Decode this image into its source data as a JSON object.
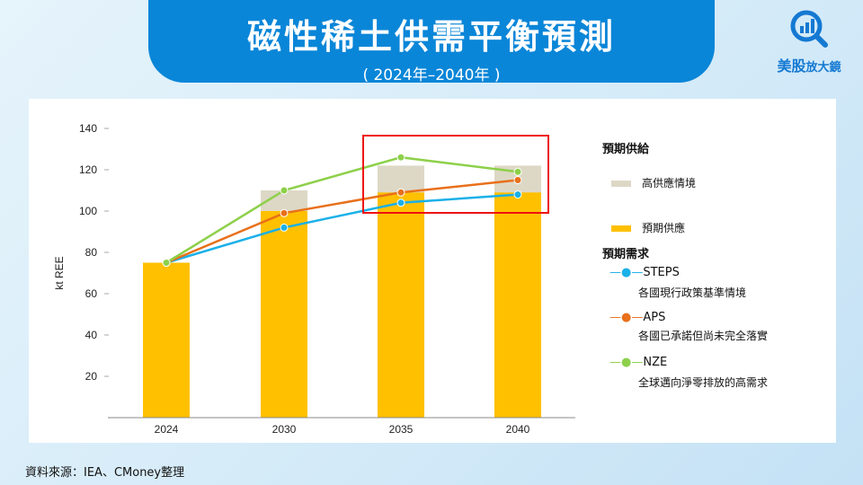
{
  "header": {
    "title": "磁性稀土供需平衡預測",
    "subtitle": "( 2024年–2040年 )"
  },
  "logo": {
    "brand": "美股",
    "brand_small": "放大鏡"
  },
  "source": "資料來源：IEA、CMoney整理",
  "colors": {
    "high_supply": "#ddd8c6",
    "expected_supply": "#ffc000",
    "STEPS": "#1ab0e8",
    "APS": "#e8701a",
    "NZE": "#8dd04a",
    "highlight": "#e11111"
  },
  "legend": {
    "supply_title": "預期供給",
    "high_supply": "高供應情境",
    "expected_supply": "預期供應",
    "demand_title": "預期需求",
    "steps": "STEPS",
    "steps_desc": "各國現行政策基準情境",
    "aps": "APS",
    "aps_desc": "各國已承諾但尚未完全落實",
    "nze": "NZE",
    "nze_desc": "全球邁向淨零排放的高需求"
  },
  "chart_data": {
    "type": "bar",
    "ylabel": "kt REE",
    "ylim": [
      0,
      140
    ],
    "yticks": [
      20,
      40,
      60,
      80,
      100,
      120,
      140
    ],
    "categories": [
      "2024",
      "2030",
      "2035",
      "2040"
    ],
    "bars": [
      {
        "name": "高供應情境",
        "values": [
          75,
          110,
          122,
          122
        ]
      },
      {
        "name": "預期供應",
        "values": [
          75,
          100,
          109,
          109
        ]
      }
    ],
    "series": [
      {
        "name": "STEPS",
        "values": [
          75,
          92,
          104,
          108
        ]
      },
      {
        "name": "APS",
        "values": [
          75,
          99,
          109,
          115
        ]
      },
      {
        "name": "NZE",
        "values": [
          75,
          110,
          126,
          119
        ]
      }
    ],
    "highlight": "2035–2040"
  }
}
